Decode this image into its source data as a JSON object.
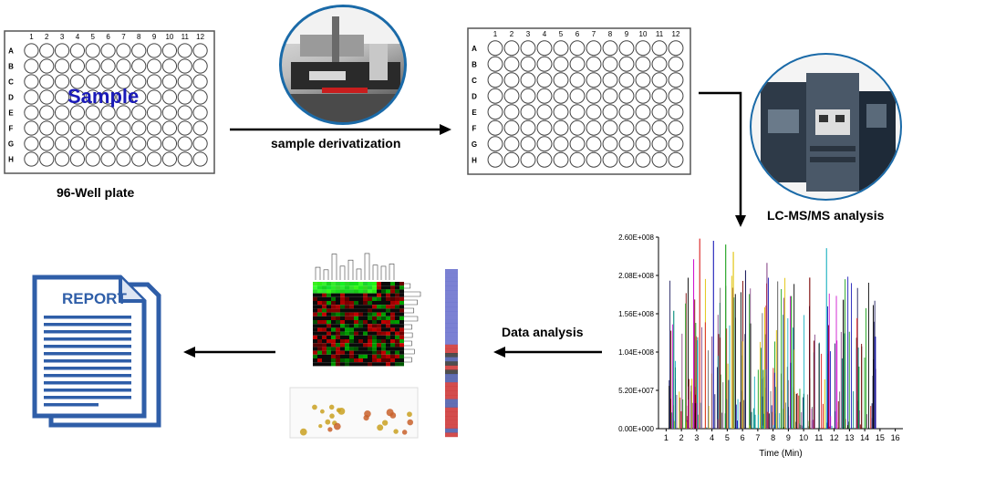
{
  "plate1": {
    "columns": [
      "1",
      "2",
      "3",
      "4",
      "5",
      "6",
      "7",
      "8",
      "9",
      "10",
      "11",
      "12"
    ],
    "rows": [
      "A",
      "B",
      "C",
      "D",
      "E",
      "F",
      "G",
      "H"
    ],
    "overlay_text": "Sample",
    "overlay_color": "#1a1ab8",
    "caption": "96-Well plate"
  },
  "plate2": {
    "columns": [
      "1",
      "2",
      "3",
      "4",
      "5",
      "6",
      "7",
      "8",
      "9",
      "10",
      "11",
      "12"
    ],
    "rows": [
      "A",
      "B",
      "C",
      "D",
      "E",
      "F",
      "G",
      "H"
    ]
  },
  "steps": {
    "derivatization": "sample derivatization",
    "lcms": "LC-MS/MS analysis",
    "data_analysis": "Data analysis"
  },
  "report": {
    "label": "REPORT",
    "accent": "#2f5ea8"
  },
  "chart_data": {
    "type": "line",
    "xlabel": "Time (Min)",
    "ylabel": "",
    "y_ticks": [
      "0.00E+000",
      "5.20E+007",
      "1.04E+008",
      "1.56E+008",
      "2.08E+008",
      "2.60E+008"
    ],
    "x_ticks": [
      "1",
      "2",
      "3",
      "4",
      "5",
      "6",
      "7",
      "8",
      "9",
      "10",
      "11",
      "12",
      "13",
      "14",
      "15",
      "16"
    ],
    "xlim": [
      0.5,
      16.5
    ],
    "ylim": [
      0,
      260000000
    ],
    "peaks": [
      {
        "x": 3.2,
        "y": 258000000
      },
      {
        "x": 4.1,
        "y": 255000000
      },
      {
        "x": 4.9,
        "y": 250000000
      },
      {
        "x": 2.8,
        "y": 230000000
      },
      {
        "x": 5.4,
        "y": 240000000
      },
      {
        "x": 11.5,
        "y": 245000000
      },
      {
        "x": 6.2,
        "y": 215000000
      },
      {
        "x": 7.6,
        "y": 225000000
      },
      {
        "x": 8.3,
        "y": 200000000
      },
      {
        "x": 10.4,
        "y": 205000000
      },
      {
        "x": 1.5,
        "y": 160000000
      },
      {
        "x": 12.6,
        "y": 175000000
      },
      {
        "x": 13.5,
        "y": 150000000
      },
      {
        "x": 14.7,
        "y": 125000000
      },
      {
        "x": 9.2,
        "y": 180000000
      }
    ],
    "series_colors": [
      "#d91c1c",
      "#1a1ab8",
      "#18a018",
      "#d018d0",
      "#e0c000",
      "#18b0c0",
      "#202060",
      "#8a4a8a",
      "#707070",
      "#7a0000",
      "#008a7a",
      "#000000"
    ]
  }
}
